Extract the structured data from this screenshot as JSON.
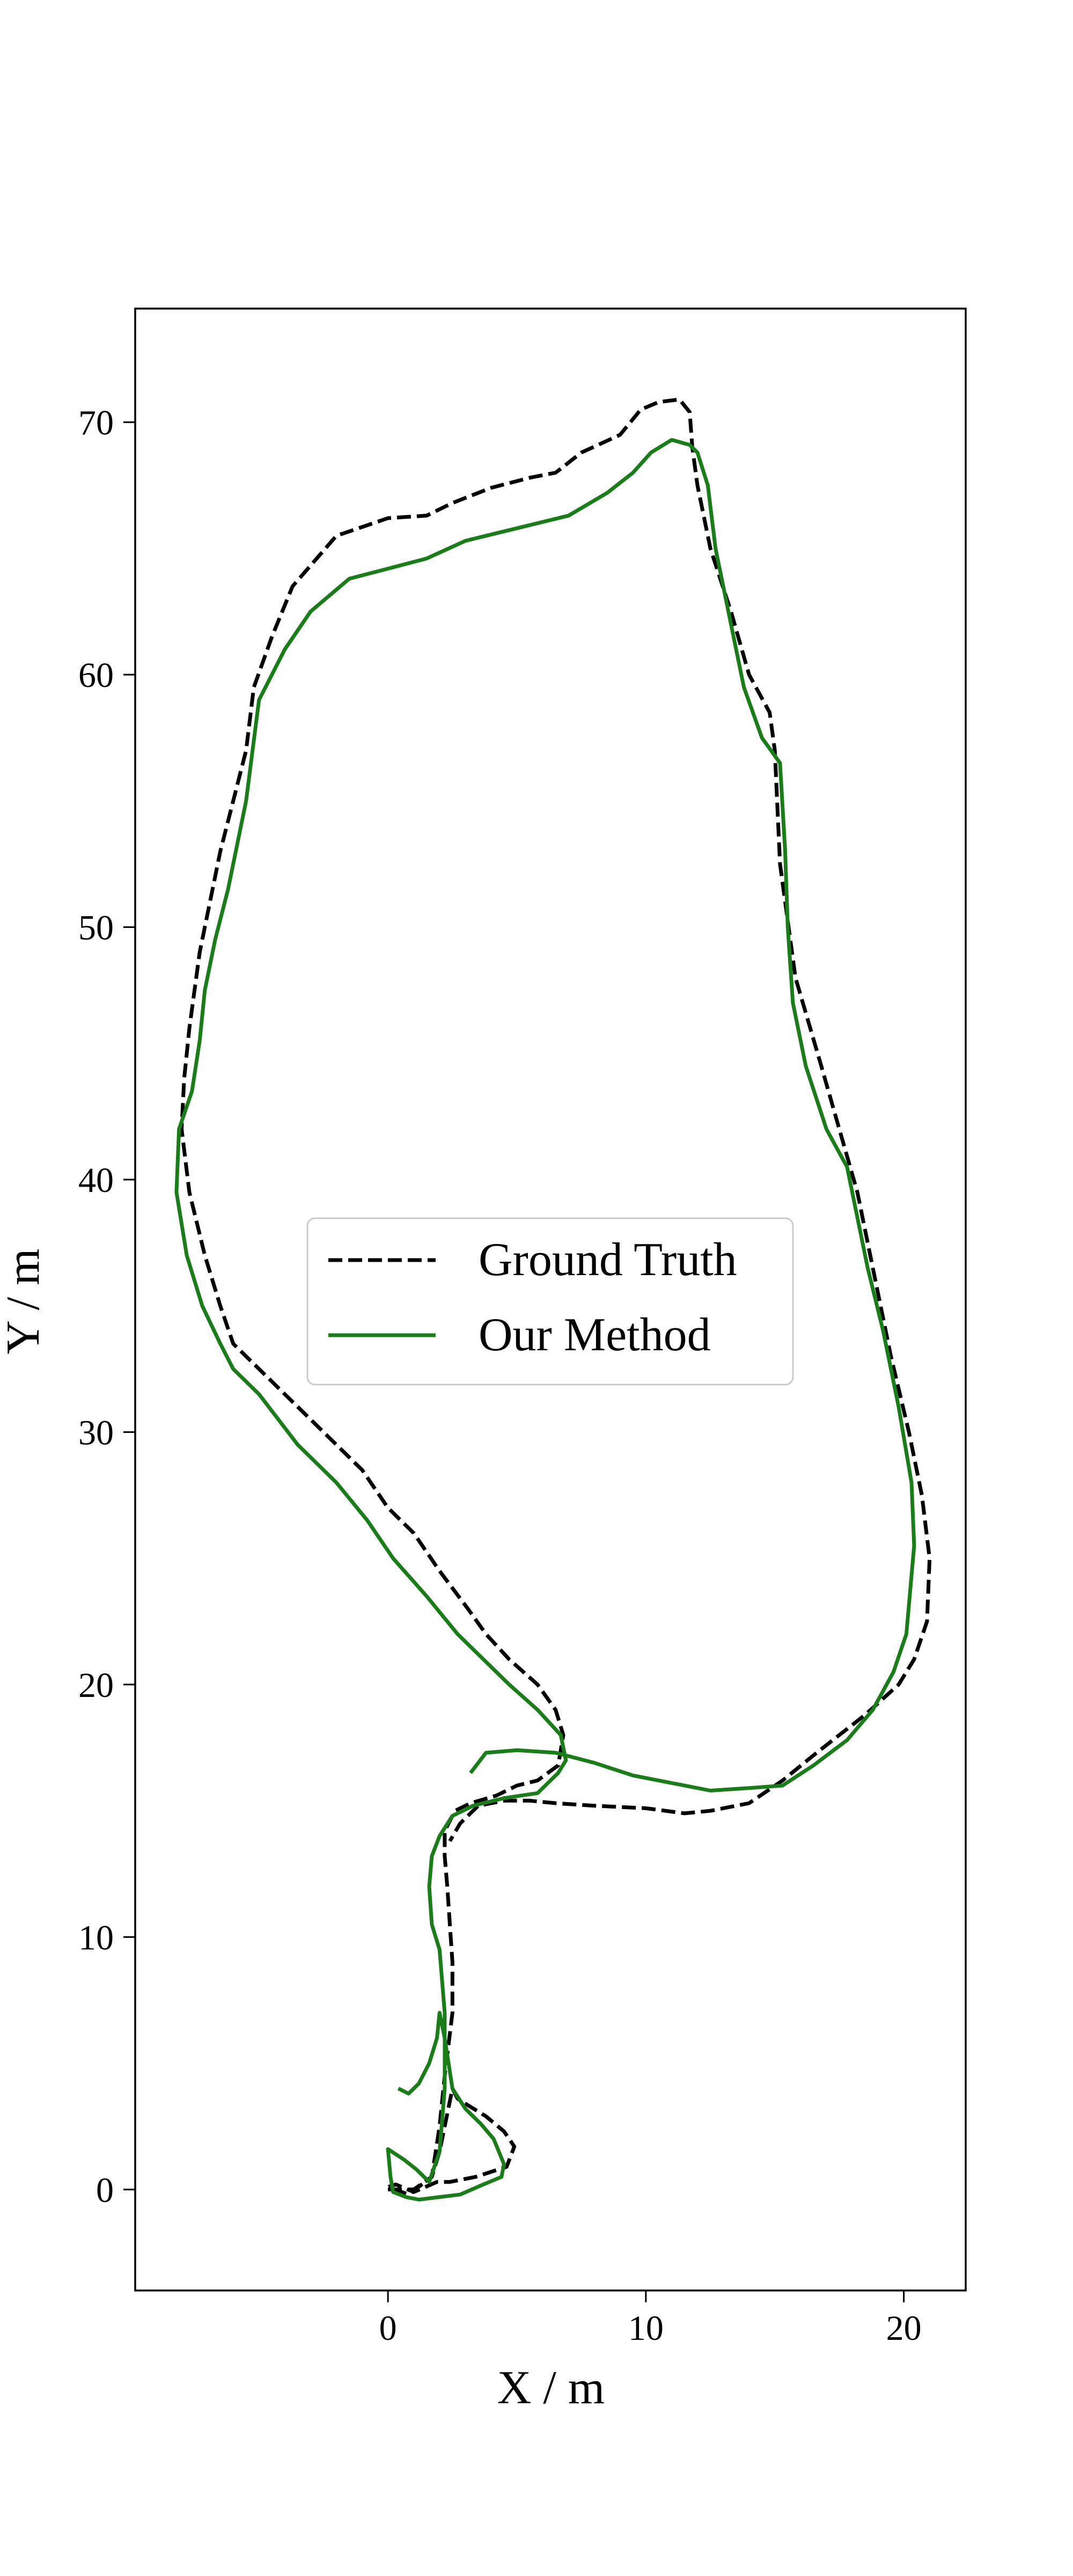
{
  "chart_data": {
    "type": "line",
    "title": "",
    "xlabel": "X / m",
    "ylabel": "Y / m",
    "xlim": [
      -9.8,
      22.4
    ],
    "ylim": [
      -4,
      74.5
    ],
    "xticks": [
      0,
      10,
      20
    ],
    "yticks": [
      0,
      10,
      20,
      30,
      40,
      50,
      60,
      70
    ],
    "grid": false,
    "legend": {
      "position": "center-left"
    },
    "series": [
      {
        "name": "Ground Truth",
        "style": "dashed",
        "color": "#000000",
        "x": [
          0,
          1.0,
          1.7,
          2.0,
          2.3,
          2.5,
          2.7,
          3.0,
          3.8,
          4.5,
          4.9,
          4.6,
          3.4,
          2.4,
          1.9,
          1.0,
          0.3,
          0,
          0.8,
          1.7,
          2.0,
          2.2,
          2.5,
          2.5,
          2.4,
          2.3,
          2.2,
          2.2,
          2.6,
          3.2,
          4.2,
          5.0,
          5.8,
          6.6,
          6.8,
          6.5,
          5.8,
          4.7,
          3.8,
          3.1,
          2.0,
          1.0,
          0,
          -1.0,
          -2.0,
          -3.5,
          -5.0,
          -6.0,
          -6.5,
          -7.1,
          -7.7,
          -8.0,
          -7.9,
          -7.7,
          -7.3,
          -6.9,
          -6.5,
          -6.0,
          -5.5,
          -5.2,
          -4.5,
          -3.7,
          -2.0,
          0,
          1.5,
          2.5,
          4.0,
          5.5,
          6.5,
          7.5,
          9.0,
          9.8,
          10.5,
          11.3,
          11.7,
          11.8,
          12.0,
          12.5,
          13.3,
          14.0,
          14.8,
          15.0,
          15.2,
          15.8,
          16.8,
          17.5,
          18.2,
          18.5,
          18.8,
          19.5,
          20.2,
          20.7,
          21.0,
          20.9,
          20.4,
          19.8,
          18.5,
          17.5,
          16.5,
          15.3,
          14.0,
          12.5,
          11.5,
          10.0,
          8.0,
          6.5,
          5.5,
          4.5,
          3.5,
          2.8,
          2.4
        ],
        "y": [
          0,
          0,
          0.5,
          1.5,
          3.0,
          4.0,
          3.6,
          3.4,
          2.9,
          2.3,
          1.7,
          0.9,
          0.5,
          0.3,
          0.3,
          -0.1,
          0.2,
          0.1,
          -0.2,
          0.5,
          2.5,
          4.5,
          7.0,
          9.0,
          10.5,
          12.0,
          13.2,
          14.2,
          15.0,
          15.3,
          15.6,
          16.0,
          16.2,
          16.8,
          18.0,
          19.0,
          20.0,
          21.0,
          22.0,
          23.0,
          24.5,
          26.0,
          27.0,
          28.5,
          29.5,
          31.0,
          32.5,
          33.5,
          35.0,
          37.0,
          39.5,
          42.0,
          44.0,
          46.0,
          49.0,
          51.0,
          53.0,
          55.0,
          57.0,
          59.5,
          61.5,
          63.5,
          65.5,
          66.2,
          66.3,
          66.8,
          67.4,
          67.8,
          68.0,
          68.8,
          69.5,
          70.5,
          70.8,
          70.9,
          70.4,
          69.0,
          67.5,
          65.0,
          62.5,
          60.0,
          58.5,
          57.0,
          52.5,
          48.0,
          44.5,
          42.0,
          39.5,
          38.0,
          36.5,
          33.0,
          30.0,
          27.5,
          25.0,
          22.5,
          21.0,
          20.0,
          18.8,
          18.0,
          17.2,
          16.2,
          15.3,
          15.0,
          14.9,
          15.1,
          15.2,
          15.3,
          15.4,
          15.4,
          15.2,
          14.5,
          13.8
        ]
      },
      {
        "name": "Our Method",
        "style": "solid",
        "color": "#1a7d1a",
        "x": [
          0.4,
          0.8,
          1.2,
          1.6,
          1.9,
          2.0,
          2.2,
          2.5,
          3.0,
          3.6,
          4.1,
          4.5,
          4.4,
          3.7,
          2.8,
          2.0,
          1.2,
          0.7,
          0.2,
          0.1,
          0,
          0.6,
          1.1,
          1.6,
          2.0,
          2.2,
          2.2,
          2.0,
          1.7,
          1.6,
          1.7,
          2.0,
          2.5,
          3.3,
          4.5,
          5.8,
          6.6,
          6.9,
          6.7,
          5.8,
          4.7,
          3.7,
          2.7,
          1.5,
          0.2,
          -0.8,
          -2.0,
          -3.5,
          -5.0,
          -6.0,
          -6.5,
          -7.2,
          -7.8,
          -8.2,
          -8.1,
          -7.6,
          -7.3,
          -7.1,
          -6.7,
          -6.2,
          -5.8,
          -5.5,
          -5.0,
          -4.0,
          -3.0,
          -1.5,
          0,
          1.5,
          3.0,
          5.0,
          7.0,
          8.5,
          9.5,
          10.2,
          11.0,
          11.7,
          12.0,
          12.4,
          12.7,
          13.3,
          13.8,
          14.5,
          15.2,
          15.4,
          15.5,
          15.7,
          16.2,
          17.0,
          17.8,
          18.3,
          18.6,
          19.2,
          19.8,
          20.3,
          20.4,
          20.1,
          19.6,
          18.8,
          17.8,
          16.5,
          15.3,
          14.0,
          12.5,
          11.0,
          9.5,
          8.0,
          6.5,
          5.0,
          3.8,
          3.2
        ],
        "y": [
          4.0,
          3.8,
          4.2,
          5.0,
          6.0,
          7.0,
          6.0,
          4.0,
          3.2,
          2.6,
          2.0,
          1.0,
          0.5,
          0.2,
          -0.2,
          -0.3,
          -0.4,
          -0.3,
          -0.1,
          0.5,
          1.6,
          1.2,
          0.8,
          0.3,
          1.5,
          4.0,
          7.0,
          9.5,
          10.5,
          12.0,
          13.2,
          14.0,
          14.8,
          15.2,
          15.5,
          15.7,
          16.5,
          17.0,
          18.0,
          19.0,
          20.0,
          21.0,
          22.0,
          23.5,
          25.0,
          26.5,
          28.0,
          29.5,
          31.5,
          32.5,
          33.5,
          35.0,
          37.0,
          39.5,
          42.0,
          43.5,
          45.5,
          47.5,
          49.5,
          51.5,
          53.5,
          55.0,
          59.0,
          61.0,
          62.5,
          63.8,
          64.2,
          64.6,
          65.3,
          65.8,
          66.3,
          67.2,
          68.0,
          68.8,
          69.3,
          69.1,
          68.8,
          67.5,
          65.0,
          62.0,
          59.5,
          57.5,
          56.5,
          53.0,
          50.0,
          47.0,
          44.5,
          42.0,
          40.5,
          38.0,
          36.5,
          34.0,
          31.0,
          28.0,
          25.5,
          22.0,
          20.5,
          19.0,
          17.8,
          16.8,
          16.0,
          15.9,
          15.8,
          16.1,
          16.4,
          16.9,
          17.3,
          17.4,
          17.3,
          16.5
        ]
      }
    ]
  }
}
